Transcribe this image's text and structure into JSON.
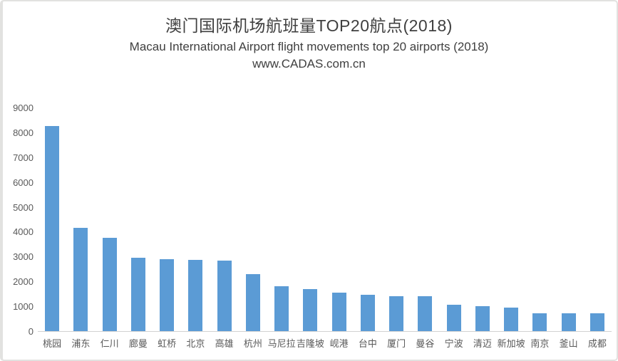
{
  "header": {
    "title": "澳门国际机场航班量TOP20航点(2018)",
    "subtitle": "Macau International Airport  flight movements top 20 airports (2018)",
    "watermark": "www.CADAS.com.cn"
  },
  "chart_data": {
    "type": "bar",
    "title": "澳门国际机场航班量TOP20航点(2018)",
    "subtitle": "Macau International Airport flight movements top 20 airports (2018)",
    "watermark": "www.CADAS.com.cn",
    "categories": [
      "桃园",
      "浦东",
      "仁川",
      "廊曼",
      "虹桥",
      "北京",
      "高雄",
      "杭州",
      "马尼拉",
      "吉隆坡",
      "岘港",
      "台中",
      "厦门",
      "曼谷",
      "宁波",
      "清迈",
      "新加坡",
      "南京",
      "釜山",
      "成都"
    ],
    "values": [
      8250,
      4150,
      3750,
      2950,
      2900,
      2880,
      2850,
      2300,
      1800,
      1700,
      1550,
      1450,
      1400,
      1400,
      1050,
      1000,
      950,
      730,
      720,
      710
    ],
    "xlabel": "",
    "ylabel": "",
    "ylim": [
      0,
      9000
    ],
    "yticks": [
      0,
      1000,
      2000,
      3000,
      4000,
      5000,
      6000,
      7000,
      8000,
      9000
    ],
    "grid": false,
    "legend": false,
    "bar_color": "#5b9bd5",
    "axis_text_color": "#595959",
    "axis_line_color": "#d2d2d2",
    "title_color": "#3f3f3f"
  }
}
